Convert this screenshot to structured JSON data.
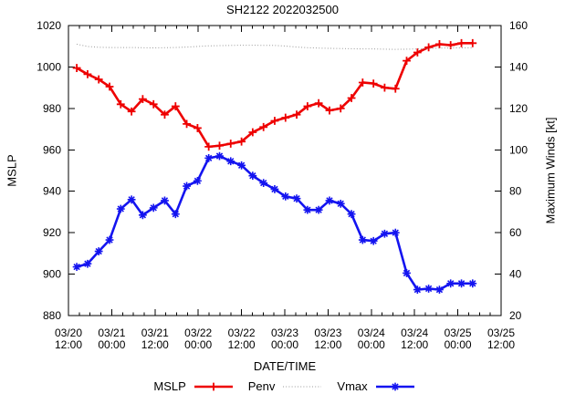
{
  "window": {
    "title": "SH2122 2022032500"
  },
  "chart_data": {
    "type": "line",
    "title": "SH2122 2022032500",
    "xlabel": "DATE/TIME",
    "ylabel_left": "MSLP",
    "ylabel_right": "Maximum Winds [kt]",
    "grid": false,
    "legend_position": "bottom-center",
    "x_axis": {
      "units": "hours since 03/20 12:00",
      "range_hours": [
        0,
        120
      ],
      "minor_tick_step_hours": 3,
      "major_ticks": [
        {
          "hour": 0,
          "date": "03/20",
          "time": "12:00"
        },
        {
          "hour": 12,
          "date": "03/21",
          "time": "00:00"
        },
        {
          "hour": 24,
          "date": "03/21",
          "time": "12:00"
        },
        {
          "hour": 36,
          "date": "03/22",
          "time": "00:00"
        },
        {
          "hour": 48,
          "date": "03/22",
          "time": "12:00"
        },
        {
          "hour": 60,
          "date": "03/23",
          "time": "00:00"
        },
        {
          "hour": 72,
          "date": "03/23",
          "time": "12:00"
        },
        {
          "hour": 84,
          "date": "03/24",
          "time": "00:00"
        },
        {
          "hour": 96,
          "date": "03/24",
          "time": "12:00"
        },
        {
          "hour": 108,
          "date": "03/25",
          "time": "00:00"
        },
        {
          "hour": 120,
          "date": "03/25",
          "time": "12:00"
        }
      ]
    },
    "y_left_axis": {
      "label": "MSLP",
      "min": 880,
      "max": 1020,
      "tick_step": 20,
      "ticks": [
        880,
        900,
        920,
        940,
        960,
        980,
        1000,
        1020
      ]
    },
    "y_right_axis": {
      "label": "Maximum Winds [kt]",
      "min": 20,
      "max": 160,
      "tick_step": 20,
      "ticks": [
        20,
        40,
        60,
        80,
        100,
        120,
        140,
        160
      ]
    },
    "hours": [
      2.3,
      5.3,
      8.4,
      11.4,
      14.5,
      17.5,
      20.6,
      23.6,
      26.7,
      29.7,
      32.8,
      35.8,
      38.9,
      41.9,
      45,
      48,
      51.1,
      54.1,
      57.2,
      60.2,
      63.3,
      66.3,
      69.4,
      72.4,
      75.5,
      78.5,
      81.6,
      84.6,
      87.7,
      90.7,
      93.8,
      96.8,
      99.9,
      102.9,
      106,
      109,
      112.1
    ],
    "series": [
      {
        "name": "MSLP",
        "axis": "left",
        "color": "#ee0000",
        "style": "solid",
        "marker": "plus",
        "values": [
          999.5,
          996.5,
          994,
          990.5,
          982,
          978.5,
          984.5,
          982,
          977,
          981,
          972.5,
          970.5,
          961.5,
          962,
          963,
          964,
          968.5,
          971,
          974,
          975.5,
          977,
          981,
          982.5,
          979,
          980,
          985,
          992.5,
          992,
          990,
          989.5,
          1003,
          1007,
          1009.5,
          1011,
          1010.5,
          1011.5,
          1011.5
        ]
      },
      {
        "name": "Penv",
        "axis": "left",
        "color": "#999999",
        "style": "dotted",
        "marker": "none",
        "values": [
          1011,
          1009.9,
          1009.5,
          1009.4,
          1009.4,
          1009.4,
          1009.3,
          1009.2,
          1009.3,
          1009.4,
          1009.6,
          1009.9,
          1010.2,
          1010.3,
          1010.4,
          1010.5,
          1010.5,
          1010.4,
          1010.4,
          1010.1,
          1009.6,
          1009.3,
          1009.1,
          1009,
          1008.9,
          1008.8,
          1008.7,
          1008.7,
          1008.6,
          1008.5,
          1008.6,
          1008.7,
          1009,
          1009.1,
          1009.2,
          1009.2,
          1009.2
        ]
      },
      {
        "name": "Vmax",
        "axis": "right",
        "color": "#1414f0",
        "style": "solid",
        "marker": "star",
        "values": [
          43.5,
          45,
          51,
          56.5,
          71.5,
          76,
          68.5,
          72,
          75.5,
          69,
          82.5,
          85,
          96,
          97,
          94.5,
          92.5,
          87.5,
          84,
          81,
          77.5,
          76.5,
          71,
          71,
          75.5,
          74,
          69,
          56.5,
          56,
          59.5,
          60,
          40.5,
          32.5,
          33,
          32.5,
          35.5,
          35.5,
          35.5
        ]
      }
    ]
  }
}
